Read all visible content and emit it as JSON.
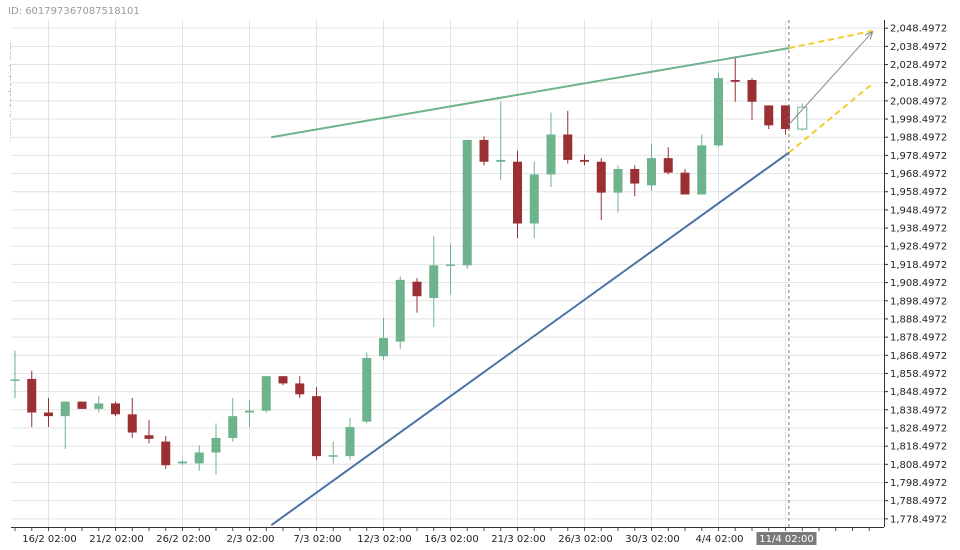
{
  "header": {
    "id_text": "ID: 601797367087518101",
    "watermark": "www.autochartist.com"
  },
  "colors": {
    "up": "#6db38e",
    "down": "#9b3034",
    "resistance": "#6db38e",
    "support": "#4a73a4",
    "projection": "#f2cc2e",
    "arrow": "#8a8a8a",
    "grid": "#e3e3e3",
    "highlight_bg": "#7a7a7a"
  },
  "chart_data": {
    "type": "candlestick",
    "title": "",
    "xlabel": "",
    "ylabel": "",
    "ylim": [
      1774.0,
      2053.0
    ],
    "yticks": [
      "2,048.4972",
      "2,038.4972",
      "2,028.4972",
      "2,018.4972",
      "2,008.4972",
      "1,998.4972",
      "1,988.4972",
      "1,978.4972",
      "1,968.4972",
      "1,958.4972",
      "1,948.4972",
      "1,938.4972",
      "1,928.4972",
      "1,918.4972",
      "1,908.4972",
      "1,898.4972",
      "1,888.4972",
      "1,878.4972",
      "1,868.4972",
      "1,858.4972",
      "1,848.4972",
      "1,838.4972",
      "1,828.4972",
      "1,818.4972",
      "1,808.4972",
      "1,798.4972",
      "1,788.4972",
      "1,778.4972"
    ],
    "ytick_values": [
      2048.4972,
      2038.4972,
      2028.4972,
      2018.4972,
      2008.4972,
      1998.4972,
      1988.4972,
      1978.4972,
      1968.4972,
      1958.4972,
      1948.4972,
      1938.4972,
      1928.4972,
      1918.4972,
      1908.4972,
      1898.4972,
      1888.4972,
      1878.4972,
      1868.4972,
      1858.4972,
      1848.4972,
      1838.4972,
      1828.4972,
      1818.4972,
      1808.4972,
      1798.4972,
      1788.4972,
      1778.4972
    ],
    "xticks": [
      {
        "label": "16/2 02:00",
        "index": 2
      },
      {
        "label": "21/2 02:00",
        "index": 6
      },
      {
        "label": "26/2 02:00",
        "index": 10
      },
      {
        "label": "2/3 02:00",
        "index": 14
      },
      {
        "label": "7/3 02:00",
        "index": 18
      },
      {
        "label": "12/3 02:00",
        "index": 22
      },
      {
        "label": "16/3 02:00",
        "index": 26
      },
      {
        "label": "21/3 02:00",
        "index": 30
      },
      {
        "label": "26/3 02:00",
        "index": 34
      },
      {
        "label": "30/3 02:00",
        "index": 38
      },
      {
        "label": "4/4 02:00",
        "index": 42
      },
      {
        "label": "11/4 02:00",
        "index": 46,
        "highlight": true
      }
    ],
    "candles": [
      {
        "o": 1855.0,
        "h": 1871.0,
        "l": 1845.0,
        "c": 1855.2
      },
      {
        "o": 1855.5,
        "h": 1860.0,
        "l": 1829.0,
        "c": 1837.0
      },
      {
        "o": 1837.0,
        "h": 1845.0,
        "l": 1829.0,
        "c": 1835.0
      },
      {
        "o": 1835.0,
        "h": 1843.0,
        "l": 1817.0,
        "c": 1843.0
      },
      {
        "o": 1843.0,
        "h": 1843.0,
        "l": 1839.0,
        "c": 1839.0
      },
      {
        "o": 1839.0,
        "h": 1846.0,
        "l": 1837.0,
        "c": 1842.0
      },
      {
        "o": 1842.0,
        "h": 1843.0,
        "l": 1835.0,
        "c": 1836.0
      },
      {
        "o": 1836.0,
        "h": 1845.0,
        "l": 1823.0,
        "c": 1826.0
      },
      {
        "o": 1824.5,
        "h": 1833.0,
        "l": 1820.0,
        "c": 1822.5
      },
      {
        "o": 1821.0,
        "h": 1824.0,
        "l": 1806.0,
        "c": 1808.0
      },
      {
        "o": 1809.0,
        "h": 1811.0,
        "l": 1808.0,
        "c": 1810.0
      },
      {
        "o": 1809.0,
        "h": 1819.0,
        "l": 1805.0,
        "c": 1815.0
      },
      {
        "o": 1815.0,
        "h": 1831.0,
        "l": 1803.0,
        "c": 1823.0
      },
      {
        "o": 1823.0,
        "h": 1845.0,
        "l": 1821.0,
        "c": 1835.0
      },
      {
        "o": 1837.0,
        "h": 1844.0,
        "l": 1829.0,
        "c": 1838.0
      },
      {
        "o": 1838.0,
        "h": 1857.0,
        "l": 1837.0,
        "c": 1857.0
      },
      {
        "o": 1857.0,
        "h": 1857.0,
        "l": 1852.0,
        "c": 1853.0
      },
      {
        "o": 1853.0,
        "h": 1857.0,
        "l": 1845.0,
        "c": 1847.0
      },
      {
        "o": 1846.0,
        "h": 1851.0,
        "l": 1811.0,
        "c": 1813.0
      },
      {
        "o": 1813.0,
        "h": 1821.0,
        "l": 1809.0,
        "c": 1813.5
      },
      {
        "o": 1813.0,
        "h": 1834.0,
        "l": 1811.0,
        "c": 1829.0
      },
      {
        "o": 1832.0,
        "h": 1870.0,
        "l": 1831.0,
        "c": 1867.0
      },
      {
        "o": 1868.0,
        "h": 1889.0,
        "l": 1866.0,
        "c": 1878.0
      },
      {
        "o": 1876.0,
        "h": 1912.0,
        "l": 1872.0,
        "c": 1910.0
      },
      {
        "o": 1909.0,
        "h": 1911.0,
        "l": 1892.0,
        "c": 1901.0
      },
      {
        "o": 1900.0,
        "h": 1934.0,
        "l": 1884.0,
        "c": 1918.0
      },
      {
        "o": 1918.0,
        "h": 1930.0,
        "l": 1902.0,
        "c": 1918.5
      },
      {
        "o": 1918.0,
        "h": 1987.0,
        "l": 1916.0,
        "c": 1987.0
      },
      {
        "o": 1987.0,
        "h": 1989.0,
        "l": 1973.0,
        "c": 1975.0
      },
      {
        "o": 1975.0,
        "h": 2008.0,
        "l": 1965.0,
        "c": 1976.0
      },
      {
        "o": 1975.0,
        "h": 1981.0,
        "l": 1933.0,
        "c": 1941.0
      },
      {
        "o": 1941.0,
        "h": 1975.0,
        "l": 1933.0,
        "c": 1968.0
      },
      {
        "o": 1968.0,
        "h": 2002.0,
        "l": 1961.0,
        "c": 1990.0
      },
      {
        "o": 1990.0,
        "h": 2003.0,
        "l": 1974.0,
        "c": 1976.0
      },
      {
        "o": 1976.0,
        "h": 1979.0,
        "l": 1973.0,
        "c": 1975.0
      },
      {
        "o": 1975.0,
        "h": 1977.0,
        "l": 1943.0,
        "c": 1958.0
      },
      {
        "o": 1958.0,
        "h": 1973.0,
        "l": 1947.0,
        "c": 1971.0
      },
      {
        "o": 1971.0,
        "h": 1973.0,
        "l": 1956.0,
        "c": 1963.0
      },
      {
        "o": 1962.0,
        "h": 1985.0,
        "l": 1959.0,
        "c": 1977.0
      },
      {
        "o": 1977.0,
        "h": 1983.0,
        "l": 1968.0,
        "c": 1969.0
      },
      {
        "o": 1969.0,
        "h": 1971.0,
        "l": 1957.0,
        "c": 1957.0
      },
      {
        "o": 1957.0,
        "h": 1990.0,
        "l": 1957.0,
        "c": 1984.0
      },
      {
        "o": 1984.0,
        "h": 2024.0,
        "l": 1983.0,
        "c": 2021.0
      },
      {
        "o": 2020.0,
        "h": 2033.0,
        "l": 2008.0,
        "c": 2019.0
      },
      {
        "o": 2020.0,
        "h": 2021.0,
        "l": 1998.0,
        "c": 2008.0
      },
      {
        "o": 2006.0,
        "h": 2006.0,
        "l": 1993.0,
        "c": 1995.0
      },
      {
        "o": 2006.0,
        "h": 2006.0,
        "l": 1990.0,
        "c": 1993.0
      },
      {
        "o": 1993.0,
        "h": 2007.0,
        "l": 1992.0,
        "c": 2005.0,
        "hollow": true
      }
    ],
    "lines": {
      "resistance": [
        {
          "i": 15.3,
          "v": 1988.5
        },
        {
          "i": 46.2,
          "v": 2037.5
        }
      ],
      "support": [
        {
          "i": 15.3,
          "v": 1775.0
        },
        {
          "i": 46.2,
          "v": 1980.0
        }
      ],
      "resistance_projection": [
        {
          "i": 46.2,
          "v": 2037.5
        },
        {
          "i": 51.2,
          "v": 2047.0
        }
      ],
      "support_projection": [
        {
          "i": 46.2,
          "v": 1980.0
        },
        {
          "i": 51.2,
          "v": 2018.0
        }
      ],
      "arrow": [
        {
          "i": 46.2,
          "v": 1995.5
        },
        {
          "i": 51.2,
          "v": 2046.5
        }
      ]
    },
    "marker_index": 46.2
  }
}
